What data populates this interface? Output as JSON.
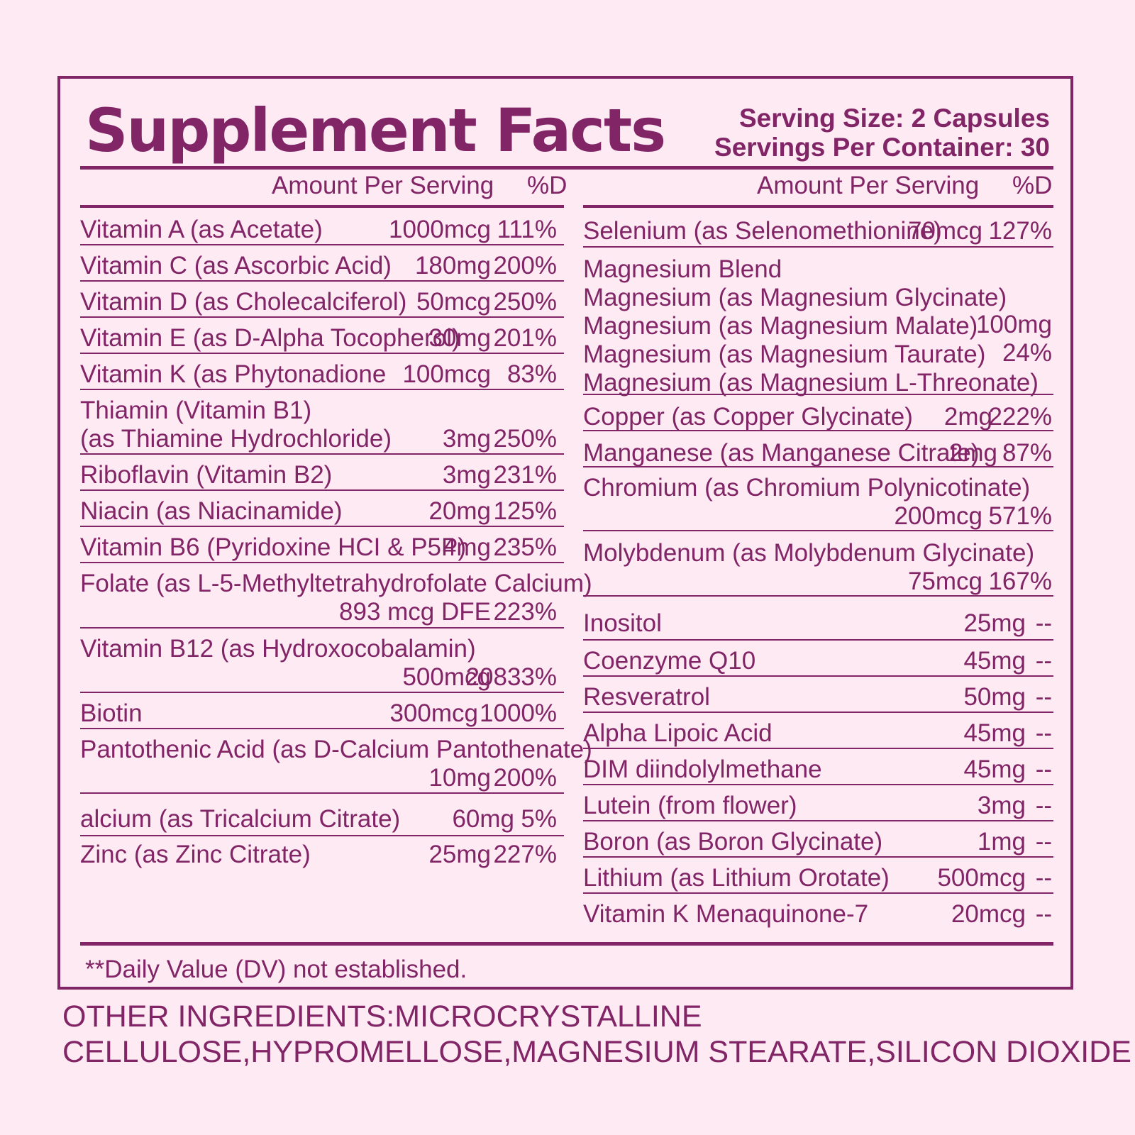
{
  "header": {
    "title": "Supplement Facts",
    "serving_size": "Serving Size: 2 Capsules",
    "servings_per_container": "Servings Per Container: 30"
  },
  "columns": {
    "amount_header": "Amount Per Serving",
    "dv_header": "%D"
  },
  "left_rows": [
    {
      "name": [
        "Vitamin A (as Acetate)"
      ],
      "amount": "1000mcg",
      "dv": "111%"
    },
    {
      "name": [
        "Vitamin C (as Ascorbic Acid)"
      ],
      "amount": "180mg",
      "dv": "200%"
    },
    {
      "name": [
        "Vitamin D (as Cholecalciferol)"
      ],
      "amount": "50mcg",
      "dv": "250%"
    },
    {
      "name": [
        "Vitamin E (as D-Alpha Tocopherol)"
      ],
      "amount": "30mg",
      "dv": "201%"
    },
    {
      "name": [
        "Vitamin K (as Phytonadione"
      ],
      "amount": "100mcg",
      "dv": "83%"
    },
    {
      "name": [
        "Thiamin (Vitamin B1)",
        "(as Thiamine Hydrochloride)"
      ],
      "amount": "3mg",
      "dv": "250%"
    },
    {
      "name": [
        "Riboflavin (Vitamin B2)"
      ],
      "amount": "3mg",
      "dv": "231%"
    },
    {
      "name": [
        "Niacin (as Niacinamide)"
      ],
      "amount": "20mg",
      "dv": "125%"
    },
    {
      "name": [
        "Vitamin B6 (Pyridoxine HCI & P5P)"
      ],
      "amount": "4mg",
      "dv": "235%"
    },
    {
      "name": [
        "Folate (as L-5-Methyltetrahydrofolate Calcium)"
      ],
      "amount": "893 mcg DFE",
      "dv": "223%"
    },
    {
      "name": [
        "Vitamin B12 (as Hydroxocobalamin)"
      ],
      "amount": "500mcg",
      "dv": "20833%"
    },
    {
      "name": [
        "Biotin"
      ],
      "amount": "300mcg",
      "dv": "1000%"
    },
    {
      "name": [
        "Pantothenic Acid (as D-Calcium Pantothenate)"
      ],
      "amount": "10mg",
      "dv": "200%"
    },
    {
      "name": [
        "alcium (as Tricalcium Citrate)"
      ],
      "amount": "60mg",
      "dv": "5%"
    },
    {
      "name": [
        "Zinc (as Zinc Citrate)"
      ],
      "amount": "25mg",
      "dv": "227%"
    }
  ],
  "right_rows": [
    {
      "name": [
        "Selenium (as Selenomethionine)"
      ],
      "amount": "70mcg",
      "dv": "127%"
    },
    {
      "name": [
        "Magnesium Blend",
        "Magnesium (as Magnesium Glycinate)",
        "Magnesium (as Magnesium Malate)",
        "Magnesium (as Magnesium Taurate)",
        "Magnesium (as Magnesium L-Threonate)"
      ],
      "amount": "100mg",
      "dv": "24%"
    },
    {
      "name": [
        "Copper (as Copper Glycinate)"
      ],
      "amount": "2mg",
      "dv": "222%"
    },
    {
      "name": [
        "Manganese (as Manganese Citrate)"
      ],
      "amount": "2mg",
      "dv": "87%"
    },
    {
      "name": [
        "Chromium (as Chromium Polynicotinate)"
      ],
      "amount": "200mcg",
      "dv": "571%"
    },
    {
      "name": [
        "Molybdenum (as Molybdenum Glycinate)"
      ],
      "amount": "75mcg",
      "dv": "167%"
    },
    {
      "name": [
        "Inositol"
      ],
      "amount": "25mg",
      "dv": "--"
    },
    {
      "name": [
        "Coenzyme Q10"
      ],
      "amount": "45mg",
      "dv": "--"
    },
    {
      "name": [
        "Resveratrol"
      ],
      "amount": "50mg",
      "dv": "--"
    },
    {
      "name": [
        "Alpha Lipoic Acid"
      ],
      "amount": "45mg",
      "dv": "--"
    },
    {
      "name": [
        "DIM diindolylmethane"
      ],
      "amount": "45mg",
      "dv": "--"
    },
    {
      "name": [
        "Lutein (from flower)"
      ],
      "amount": "3mg",
      "dv": "--"
    },
    {
      "name": [
        "Boron (as Boron Glycinate)"
      ],
      "amount": "1mg",
      "dv": "--"
    },
    {
      "name": [
        "Lithium (as Lithium Orotate)"
      ],
      "amount": "500mcg",
      "dv": "--"
    },
    {
      "name": [
        "Vitamin K Menaquinone-7"
      ],
      "amount": "20mcg",
      "dv": "--"
    }
  ],
  "footnote": "**Daily Value (DV) not established.",
  "other_ingredients": [
    "OTHER INGREDIENTS:MICROCRYSTALLINE",
    "CELLULOSE,HYPROMELLOSE,MAGNESIUM STEARATE,SILICON DIOXIDE"
  ],
  "colors": {
    "text": "#822567",
    "background": "#fdeaf3"
  }
}
